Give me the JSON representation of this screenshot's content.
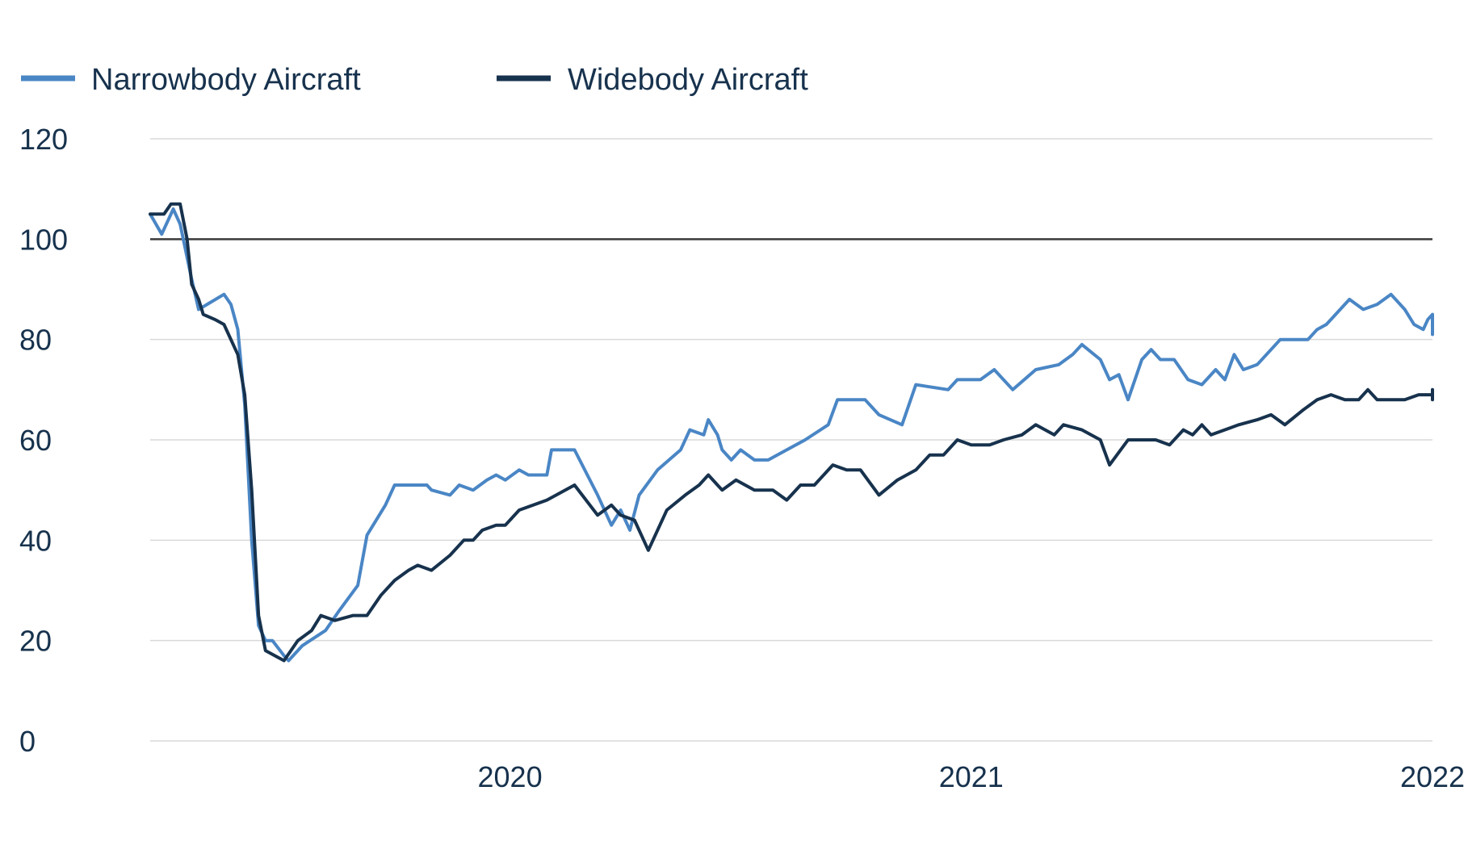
{
  "chart_data": {
    "type": "line",
    "title": "",
    "xlabel": "",
    "ylabel": "",
    "ylim": [
      0,
      120
    ],
    "yticks": [
      0,
      20,
      40,
      60,
      80,
      100,
      120
    ],
    "xlim": [
      2019.22,
      2022.0
    ],
    "xticks": [
      {
        "value": 2020,
        "label": "2020"
      },
      {
        "value": 2021,
        "label": "2021"
      },
      {
        "value": 2022,
        "label": "2022"
      }
    ],
    "reference_line": 100,
    "grid": true,
    "legend_position": "top-left",
    "series": [
      {
        "name": "Narrowbody Aircraft",
        "color": "#4a86c5",
        "points": [
          [
            2019.22,
            105
          ],
          [
            2019.245,
            101
          ],
          [
            2019.27,
            106
          ],
          [
            2019.285,
            103
          ],
          [
            2019.31,
            92
          ],
          [
            2019.325,
            86
          ],
          [
            2019.38,
            89
          ],
          [
            2019.395,
            87
          ],
          [
            2019.41,
            82
          ],
          [
            2019.425,
            67
          ],
          [
            2019.44,
            40
          ],
          [
            2019.455,
            23
          ],
          [
            2019.47,
            20
          ],
          [
            2019.485,
            20
          ],
          [
            2019.51,
            17
          ],
          [
            2019.52,
            16
          ],
          [
            2019.55,
            19
          ],
          [
            2019.6,
            22
          ],
          [
            2019.63,
            26
          ],
          [
            2019.67,
            31
          ],
          [
            2019.68,
            36
          ],
          [
            2019.69,
            41
          ],
          [
            2019.73,
            47
          ],
          [
            2019.75,
            51
          ],
          [
            2019.82,
            51
          ],
          [
            2019.83,
            50
          ],
          [
            2019.87,
            49
          ],
          [
            2019.89,
            51
          ],
          [
            2019.92,
            50
          ],
          [
            2019.95,
            52
          ],
          [
            2019.97,
            53
          ],
          [
            2019.99,
            52
          ],
          [
            2020.02,
            54
          ],
          [
            2020.04,
            53
          ],
          [
            2020.08,
            53
          ],
          [
            2020.09,
            58
          ],
          [
            2020.14,
            58
          ],
          [
            2020.19,
            49
          ],
          [
            2020.22,
            43
          ],
          [
            2020.24,
            46
          ],
          [
            2020.26,
            42
          ],
          [
            2020.28,
            49
          ],
          [
            2020.32,
            54
          ],
          [
            2020.37,
            58
          ],
          [
            2020.39,
            62
          ],
          [
            2020.42,
            61
          ],
          [
            2020.43,
            64
          ],
          [
            2020.45,
            61
          ],
          [
            2020.46,
            58
          ],
          [
            2020.48,
            56
          ],
          [
            2020.5,
            58
          ],
          [
            2020.53,
            56
          ],
          [
            2020.56,
            56
          ],
          [
            2020.6,
            58
          ],
          [
            2020.64,
            60
          ],
          [
            2020.69,
            63
          ],
          [
            2020.71,
            68
          ],
          [
            2020.74,
            68
          ],
          [
            2020.77,
            68
          ],
          [
            2020.8,
            65
          ],
          [
            2020.85,
            63
          ],
          [
            2020.88,
            71
          ],
          [
            2020.95,
            70
          ],
          [
            2020.97,
            72
          ],
          [
            2021.02,
            72
          ],
          [
            2021.05,
            74
          ],
          [
            2021.09,
            70
          ],
          [
            2021.14,
            74
          ],
          [
            2021.19,
            75
          ],
          [
            2021.22,
            77
          ],
          [
            2021.24,
            79
          ],
          [
            2021.28,
            76
          ],
          [
            2021.3,
            72
          ],
          [
            2021.32,
            73
          ],
          [
            2021.34,
            68
          ],
          [
            2021.37,
            76
          ],
          [
            2021.39,
            78
          ],
          [
            2021.41,
            76
          ],
          [
            2021.44,
            76
          ],
          [
            2021.47,
            72
          ],
          [
            2021.5,
            71
          ],
          [
            2021.53,
            74
          ],
          [
            2021.55,
            72
          ],
          [
            2021.57,
            77
          ],
          [
            2021.59,
            74
          ],
          [
            2021.62,
            75
          ],
          [
            2021.67,
            80
          ],
          [
            2021.73,
            80
          ],
          [
            2021.75,
            82
          ],
          [
            2021.77,
            83
          ],
          [
            2021.79,
            85
          ],
          [
            2021.82,
            88
          ],
          [
            2021.85,
            86
          ],
          [
            2021.88,
            87
          ],
          [
            2021.91,
            89
          ],
          [
            2021.94,
            86
          ],
          [
            2021.96,
            83
          ],
          [
            2021.98,
            82
          ],
          [
            2021.99,
            84
          ],
          [
            2022.01,
            85
          ],
          [
            2022.04,
            83
          ],
          [
            2022.07,
            81
          ],
          [
            2022.1,
            85
          ],
          [
            2022.12,
            82
          ]
        ]
      },
      {
        "name": "Widebody Aircraft",
        "color": "#17324d",
        "points": [
          [
            2019.22,
            105
          ],
          [
            2019.25,
            105
          ],
          [
            2019.265,
            107
          ],
          [
            2019.285,
            107
          ],
          [
            2019.3,
            100
          ],
          [
            2019.31,
            91
          ],
          [
            2019.325,
            88
          ],
          [
            2019.335,
            85
          ],
          [
            2019.36,
            84
          ],
          [
            2019.38,
            83
          ],
          [
            2019.41,
            77
          ],
          [
            2019.425,
            69
          ],
          [
            2019.44,
            50
          ],
          [
            2019.455,
            25
          ],
          [
            2019.47,
            18
          ],
          [
            2019.51,
            16
          ],
          [
            2019.54,
            20
          ],
          [
            2019.57,
            22
          ],
          [
            2019.59,
            25
          ],
          [
            2019.62,
            24
          ],
          [
            2019.66,
            25
          ],
          [
            2019.69,
            25
          ],
          [
            2019.72,
            29
          ],
          [
            2019.75,
            32
          ],
          [
            2019.78,
            34
          ],
          [
            2019.8,
            35
          ],
          [
            2019.83,
            34
          ],
          [
            2019.87,
            37
          ],
          [
            2019.9,
            40
          ],
          [
            2019.92,
            40
          ],
          [
            2019.94,
            42
          ],
          [
            2019.97,
            43
          ],
          [
            2019.99,
            43
          ],
          [
            2020.02,
            46
          ],
          [
            2020.08,
            48
          ],
          [
            2020.14,
            51
          ],
          [
            2020.19,
            45
          ],
          [
            2020.22,
            47
          ],
          [
            2020.24,
            45
          ],
          [
            2020.27,
            44
          ],
          [
            2020.3,
            38
          ],
          [
            2020.34,
            46
          ],
          [
            2020.38,
            49
          ],
          [
            2020.41,
            51
          ],
          [
            2020.43,
            53
          ],
          [
            2020.46,
            50
          ],
          [
            2020.49,
            52
          ],
          [
            2020.53,
            50
          ],
          [
            2020.57,
            50
          ],
          [
            2020.6,
            48
          ],
          [
            2020.63,
            51
          ],
          [
            2020.66,
            51
          ],
          [
            2020.7,
            55
          ],
          [
            2020.73,
            54
          ],
          [
            2020.76,
            54
          ],
          [
            2020.8,
            49
          ],
          [
            2020.84,
            52
          ],
          [
            2020.88,
            54
          ],
          [
            2020.91,
            57
          ],
          [
            2020.94,
            57
          ],
          [
            2020.97,
            60
          ],
          [
            2021.0,
            59
          ],
          [
            2021.04,
            59
          ],
          [
            2021.07,
            60
          ],
          [
            2021.11,
            61
          ],
          [
            2021.14,
            63
          ],
          [
            2021.18,
            61
          ],
          [
            2021.2,
            63
          ],
          [
            2021.24,
            62
          ],
          [
            2021.28,
            60
          ],
          [
            2021.3,
            55
          ],
          [
            2021.34,
            60
          ],
          [
            2021.4,
            60
          ],
          [
            2021.43,
            59
          ],
          [
            2021.46,
            62
          ],
          [
            2021.48,
            61
          ],
          [
            2021.5,
            63
          ],
          [
            2021.52,
            61
          ],
          [
            2021.58,
            63
          ],
          [
            2021.62,
            64
          ],
          [
            2021.65,
            65
          ],
          [
            2021.68,
            63
          ],
          [
            2021.72,
            66
          ],
          [
            2021.75,
            68
          ],
          [
            2021.78,
            69
          ],
          [
            2021.81,
            68
          ],
          [
            2021.84,
            68
          ],
          [
            2021.86,
            70
          ],
          [
            2021.88,
            68
          ],
          [
            2021.91,
            68
          ],
          [
            2021.94,
            68
          ],
          [
            2021.97,
            69
          ],
          [
            2022.0,
            69
          ],
          [
            2022.02,
            68
          ],
          [
            2022.04,
            69
          ],
          [
            2022.06,
            68
          ],
          [
            2022.08,
            69
          ],
          [
            2022.1,
            70
          ],
          [
            2022.12,
            70
          ]
        ]
      }
    ]
  }
}
